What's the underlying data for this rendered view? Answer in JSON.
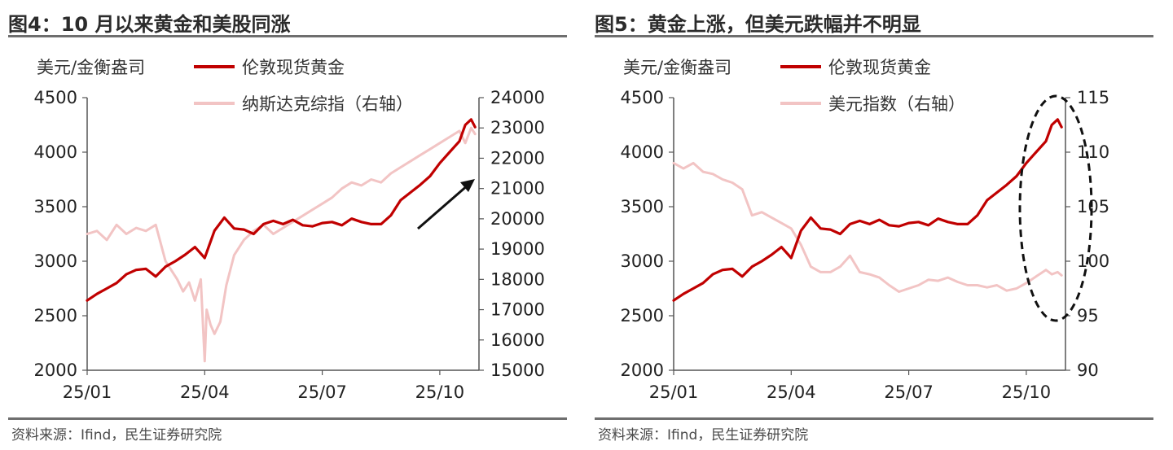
{
  "panels": {
    "left": {
      "title": "图4：10 月以来黄金和美股同涨",
      "source": "资料来源：Ifind，民生证券研究院",
      "unit_label": "美元/金衡盎司",
      "legend": [
        "伦敦现货黄金",
        "纳斯达克综指（右轴）"
      ]
    },
    "right": {
      "title": "图5：黄金上涨，但美元跌幅并不明显",
      "source": "资料来源：Ifind，民生证券研究院",
      "unit_label": "美元/金衡盎司",
      "legend": [
        "伦敦现货黄金",
        "美元指数（右轴）"
      ]
    }
  },
  "colors": {
    "gold": "#c00000",
    "secondary": "#f2c4c4",
    "axis": "#555555",
    "annotation": "#111111"
  },
  "chart_data": [
    {
      "type": "line",
      "title": "图4：10 月以来黄金和美股同涨",
      "ylabel": "美元/金衡盎司",
      "x_ticks": [
        "25/01",
        "25/04",
        "25/07",
        "25/10"
      ],
      "x_tick_positions": [
        0,
        3,
        6,
        9
      ],
      "xlim": [
        0,
        10.0
      ],
      "ylim_left": [
        2000,
        4500
      ],
      "yticks_left": [
        "2000",
        "2500",
        "3000",
        "3500",
        "4000",
        "4500"
      ],
      "ylim_right": [
        15000,
        24000
      ],
      "yticks_right": [
        "15000",
        "16000",
        "17000",
        "18000",
        "19000",
        "20000",
        "21000",
        "22000",
        "23000",
        "24000"
      ],
      "legend_position": "top-center",
      "annotation": "arrow",
      "series": [
        {
          "name": "伦敦现货黄金",
          "axis": "left",
          "x": [
            0,
            0.25,
            0.5,
            0.75,
            1,
            1.25,
            1.5,
            1.75,
            2,
            2.25,
            2.5,
            2.75,
            3,
            3.1,
            3.25,
            3.5,
            3.75,
            4,
            4.25,
            4.5,
            4.75,
            5,
            5.25,
            5.5,
            5.75,
            6,
            6.25,
            6.5,
            6.75,
            7,
            7.25,
            7.5,
            7.75,
            8,
            8.25,
            8.5,
            8.75,
            9,
            9.25,
            9.5,
            9.65,
            9.8,
            9.9
          ],
          "values": [
            2640,
            2700,
            2750,
            2800,
            2880,
            2920,
            2930,
            2860,
            2950,
            3000,
            3060,
            3130,
            3030,
            3130,
            3280,
            3400,
            3300,
            3290,
            3250,
            3340,
            3370,
            3340,
            3380,
            3330,
            3320,
            3350,
            3360,
            3330,
            3390,
            3360,
            3340,
            3340,
            3420,
            3560,
            3630,
            3700,
            3780,
            3900,
            4000,
            4100,
            4250,
            4300,
            4230
          ]
        },
        {
          "name": "纳斯达克综指（右轴）",
          "axis": "right",
          "x": [
            0,
            0.25,
            0.5,
            0.75,
            1,
            1.25,
            1.5,
            1.75,
            2,
            2.15,
            2.3,
            2.45,
            2.6,
            2.75,
            2.9,
            3.0,
            3.05,
            3.15,
            3.25,
            3.4,
            3.55,
            3.75,
            4,
            4.25,
            4.5,
            4.75,
            5,
            5.25,
            5.5,
            5.75,
            6,
            6.25,
            6.5,
            6.75,
            7,
            7.25,
            7.5,
            7.75,
            8,
            8.25,
            8.5,
            8.75,
            9,
            9.25,
            9.5,
            9.65,
            9.8,
            9.9
          ],
          "values": [
            19500,
            19600,
            19300,
            19800,
            19500,
            19700,
            19600,
            19800,
            18600,
            18300,
            18000,
            17600,
            17900,
            17300,
            18000,
            15300,
            17000,
            16500,
            16200,
            16600,
            17800,
            18800,
            19300,
            19600,
            19800,
            19500,
            19700,
            19900,
            20100,
            20300,
            20500,
            20700,
            21000,
            21200,
            21100,
            21300,
            21200,
            21500,
            21700,
            21900,
            22100,
            22300,
            22500,
            22700,
            22900,
            22500,
            23000,
            22800
          ]
        }
      ]
    },
    {
      "type": "line",
      "title": "图5：黄金上涨，但美元跌幅并不明显",
      "ylabel": "美元/金衡盎司",
      "x_ticks": [
        "25/01",
        "25/04",
        "25/07",
        "25/10"
      ],
      "x_tick_positions": [
        0,
        3,
        6,
        9
      ],
      "xlim": [
        0,
        10.0
      ],
      "ylim_left": [
        2000,
        4500
      ],
      "yticks_left": [
        "2000",
        "2500",
        "3000",
        "3500",
        "4000",
        "4500"
      ],
      "ylim_right": [
        90,
        115
      ],
      "yticks_right": [
        "90",
        "95",
        "100",
        "105",
        "110",
        "115"
      ],
      "legend_position": "top-center",
      "annotation": "dashed ellipse",
      "series": [
        {
          "name": "伦敦现货黄金",
          "axis": "left",
          "x": [
            0,
            0.25,
            0.5,
            0.75,
            1,
            1.25,
            1.5,
            1.75,
            2,
            2.25,
            2.5,
            2.75,
            3,
            3.1,
            3.25,
            3.5,
            3.75,
            4,
            4.25,
            4.5,
            4.75,
            5,
            5.25,
            5.5,
            5.75,
            6,
            6.25,
            6.5,
            6.75,
            7,
            7.25,
            7.5,
            7.75,
            8,
            8.25,
            8.5,
            8.75,
            9,
            9.25,
            9.5,
            9.65,
            9.8,
            9.9
          ],
          "values": [
            2640,
            2700,
            2750,
            2800,
            2880,
            2920,
            2930,
            2860,
            2950,
            3000,
            3060,
            3130,
            3030,
            3130,
            3280,
            3400,
            3300,
            3290,
            3250,
            3340,
            3370,
            3340,
            3380,
            3330,
            3320,
            3350,
            3360,
            3330,
            3390,
            3360,
            3340,
            3340,
            3420,
            3560,
            3630,
            3700,
            3780,
            3900,
            4000,
            4100,
            4250,
            4300,
            4230
          ]
        },
        {
          "name": "美元指数（右轴）",
          "axis": "right",
          "x": [
            0,
            0.25,
            0.5,
            0.75,
            1,
            1.25,
            1.5,
            1.75,
            2,
            2.25,
            2.5,
            2.75,
            3,
            3.25,
            3.5,
            3.75,
            4,
            4.25,
            4.5,
            4.75,
            5,
            5.25,
            5.5,
            5.75,
            6,
            6.25,
            6.5,
            6.75,
            7,
            7.25,
            7.5,
            7.75,
            8,
            8.25,
            8.5,
            8.75,
            9,
            9.25,
            9.5,
            9.65,
            9.8,
            9.9
          ],
          "values": [
            109,
            108.5,
            109,
            108.2,
            108,
            107.5,
            107.2,
            106.6,
            104.2,
            104.5,
            104,
            103.5,
            103,
            101.5,
            99.5,
            99,
            99,
            99.5,
            100.5,
            99,
            98.8,
            98.5,
            97.8,
            97.2,
            97.5,
            97.8,
            98.3,
            98.2,
            98.5,
            98.1,
            97.8,
            97.8,
            97.6,
            97.8,
            97.3,
            97.5,
            98.0,
            98.6,
            99.2,
            98.8,
            99.0,
            98.7
          ]
        }
      ]
    }
  ]
}
